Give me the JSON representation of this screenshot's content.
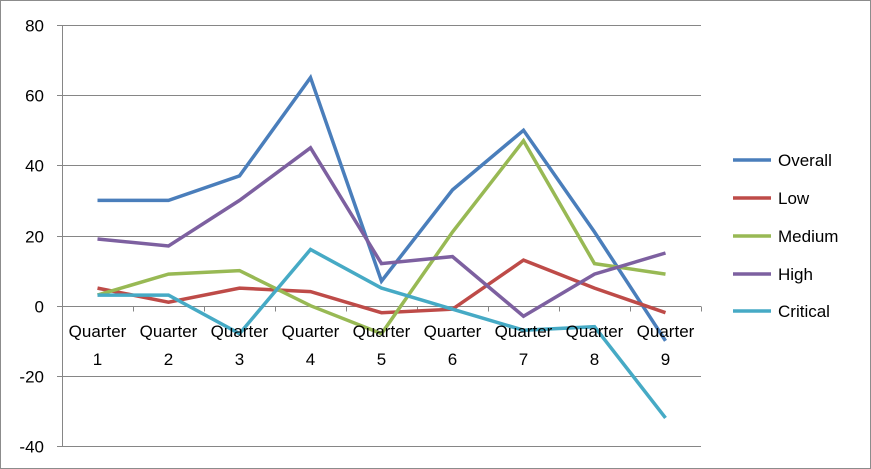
{
  "chart_data": {
    "type": "line",
    "title": "",
    "xlabel": "",
    "ylabel": "",
    "categories": [
      "Quarter 1",
      "Quarter 2",
      "Quarter 3",
      "Quarter 4",
      "Quarter 5",
      "Quarter 6",
      "Quarter 7",
      "Quarter 8",
      "Quarter 9"
    ],
    "category_lines": [
      [
        "Quarter",
        "1"
      ],
      [
        "Quarter",
        "2"
      ],
      [
        "Quarter",
        "3"
      ],
      [
        "Quarter",
        "4"
      ],
      [
        "Quarter",
        "5"
      ],
      [
        "Quarter",
        "6"
      ],
      [
        "Quarter",
        "7"
      ],
      [
        "Quarter",
        "8"
      ],
      [
        "Quarter",
        "9"
      ]
    ],
    "ylim": [
      -40,
      80
    ],
    "yticks": [
      -40,
      -20,
      0,
      20,
      40,
      60,
      80
    ],
    "grid": "horizontal major gridlines",
    "legend_position": "right",
    "series": [
      {
        "name": "Overall",
        "color": "#4a7ebb",
        "values": [
          30,
          30,
          37,
          65,
          7,
          33,
          50,
          21,
          -10
        ]
      },
      {
        "name": "Low",
        "color": "#be4b48",
        "values": [
          5,
          1,
          5,
          4,
          -2,
          -1,
          13,
          5,
          -2
        ]
      },
      {
        "name": "Medium",
        "color": "#98b954",
        "values": [
          3,
          9,
          10,
          0,
          -8,
          21,
          47,
          12,
          9
        ]
      },
      {
        "name": "High",
        "color": "#7d60a0",
        "values": [
          19,
          17,
          30,
          45,
          12,
          14,
          -3,
          9,
          15
        ]
      },
      {
        "name": "Critical",
        "color": "#46aac5",
        "values": [
          3,
          3,
          -8,
          16,
          5,
          -1,
          -7,
          -6,
          -32
        ]
      }
    ]
  }
}
